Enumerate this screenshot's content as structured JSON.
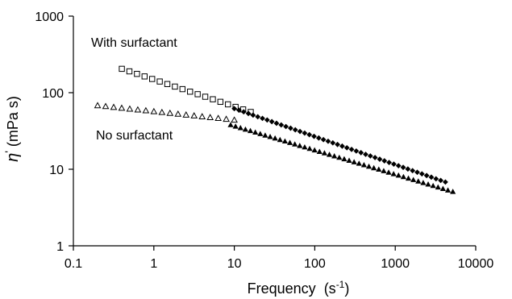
{
  "chart_data": {
    "type": "scatter",
    "x_scale": "log",
    "y_scale": "log",
    "xlim": [
      0.1,
      10000
    ],
    "ylim": [
      1,
      1000
    ],
    "grid": false,
    "xlabel": "Frequency",
    "xlabel_unit_base": "(s",
    "xlabel_unit_sup": "-1",
    "xlabel_unit_close": ")",
    "ylabel_symbol": "η",
    "ylabel_prime": "'",
    "ylabel_unit": "(mPa s)",
    "x_ticks": [
      0.1,
      1,
      10,
      100,
      1000,
      10000
    ],
    "x_tick_labels": [
      "0.1",
      "1",
      "10",
      "100",
      "1000",
      "10000"
    ],
    "y_ticks": [
      1,
      10,
      100,
      1000
    ],
    "y_tick_labels": [
      "1",
      "10",
      "100",
      "1000"
    ],
    "annotations": [
      {
        "text": "With surfactant",
        "near_series": "With surfactant"
      },
      {
        "text": "No surfactant",
        "near_series": "No surfactant"
      }
    ],
    "series": [
      {
        "key": "with_open",
        "marker": "open-square",
        "x_range": [
          0.4,
          16
        ],
        "y_range": [
          205,
          56
        ],
        "count": 18
      },
      {
        "key": "with_filled",
        "marker": "filled-diamond",
        "x_range": [
          10,
          4200
        ],
        "y_range": [
          62,
          6.8
        ],
        "count": 46
      },
      {
        "key": "no_open",
        "marker": "open-triangle",
        "x_range": [
          0.2,
          10
        ],
        "y_range": [
          68,
          44
        ],
        "count": 18
      },
      {
        "key": "no_filled",
        "marker": "filled-triangle",
        "x_range": [
          9,
          5200
        ],
        "y_range": [
          38,
          5.1
        ],
        "count": 46
      }
    ],
    "colors": {
      "marker": "#000000",
      "axis": "#000000",
      "background": "#ffffff"
    }
  }
}
